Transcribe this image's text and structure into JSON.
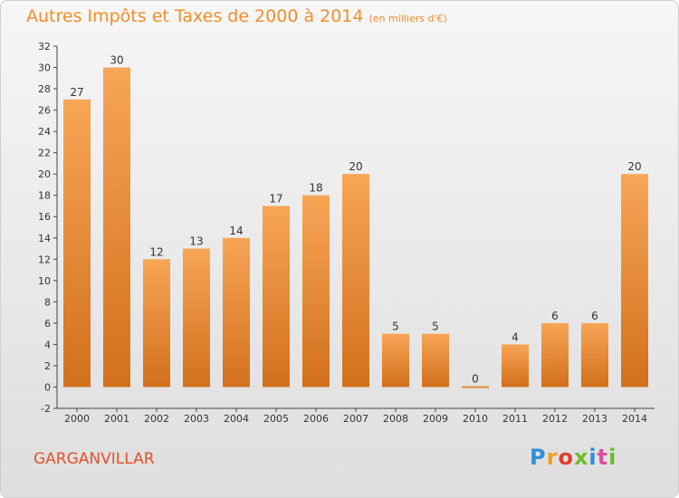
{
  "title": "Autres Impôts et Taxes de 2000 à 2014",
  "title_unit": "(en milliers d'€)",
  "town": "GARGANVILLAR",
  "logo_text": "Proxiti",
  "colors": {
    "title": "#f08e2a",
    "bar_top": "#f7a556",
    "bar_bottom": "#d2701c",
    "town": "#e0522c"
  },
  "chart_data": {
    "type": "bar",
    "title": "Autres Impôts et Taxes de 2000 à 2014",
    "unit": "(en milliers d'€)",
    "categories": [
      "2000",
      "2001",
      "2002",
      "2003",
      "2004",
      "2005",
      "2006",
      "2007",
      "2008",
      "2009",
      "2010",
      "2011",
      "2012",
      "2013",
      "2014"
    ],
    "values": [
      27,
      30,
      12,
      13,
      14,
      17,
      18,
      20,
      5,
      5,
      0,
      4,
      6,
      6,
      20
    ],
    "ylim": [
      -2,
      32
    ],
    "yticks": [
      -2,
      0,
      2,
      4,
      6,
      8,
      10,
      12,
      14,
      16,
      18,
      20,
      22,
      24,
      26,
      28,
      30,
      32
    ],
    "grid": false,
    "legend": "none"
  }
}
